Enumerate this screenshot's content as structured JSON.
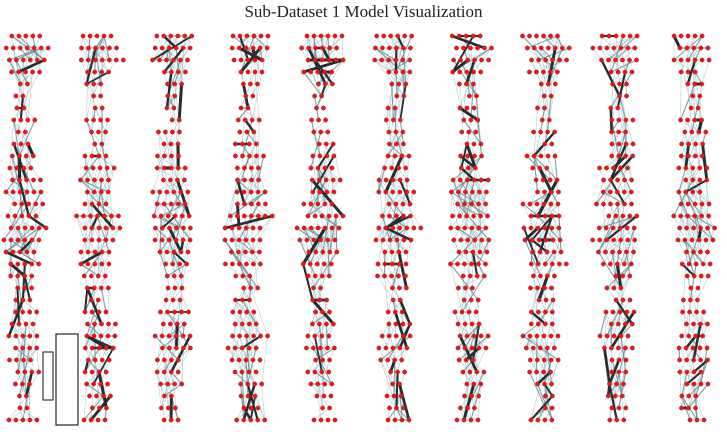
{
  "figure": {
    "title": "Sub-Dataset 1 Model Visualization"
  },
  "panels": {
    "count": 10,
    "highlight_panel_index": 0
  },
  "colors": {
    "node": "#e01b1b",
    "node_stroke": "#9a0f0f",
    "weak_edge": "#9fbcc4",
    "mid_edge": "#6f8d96",
    "strong_edge": "#2b2b2b",
    "highlight_box": "#111111"
  }
}
